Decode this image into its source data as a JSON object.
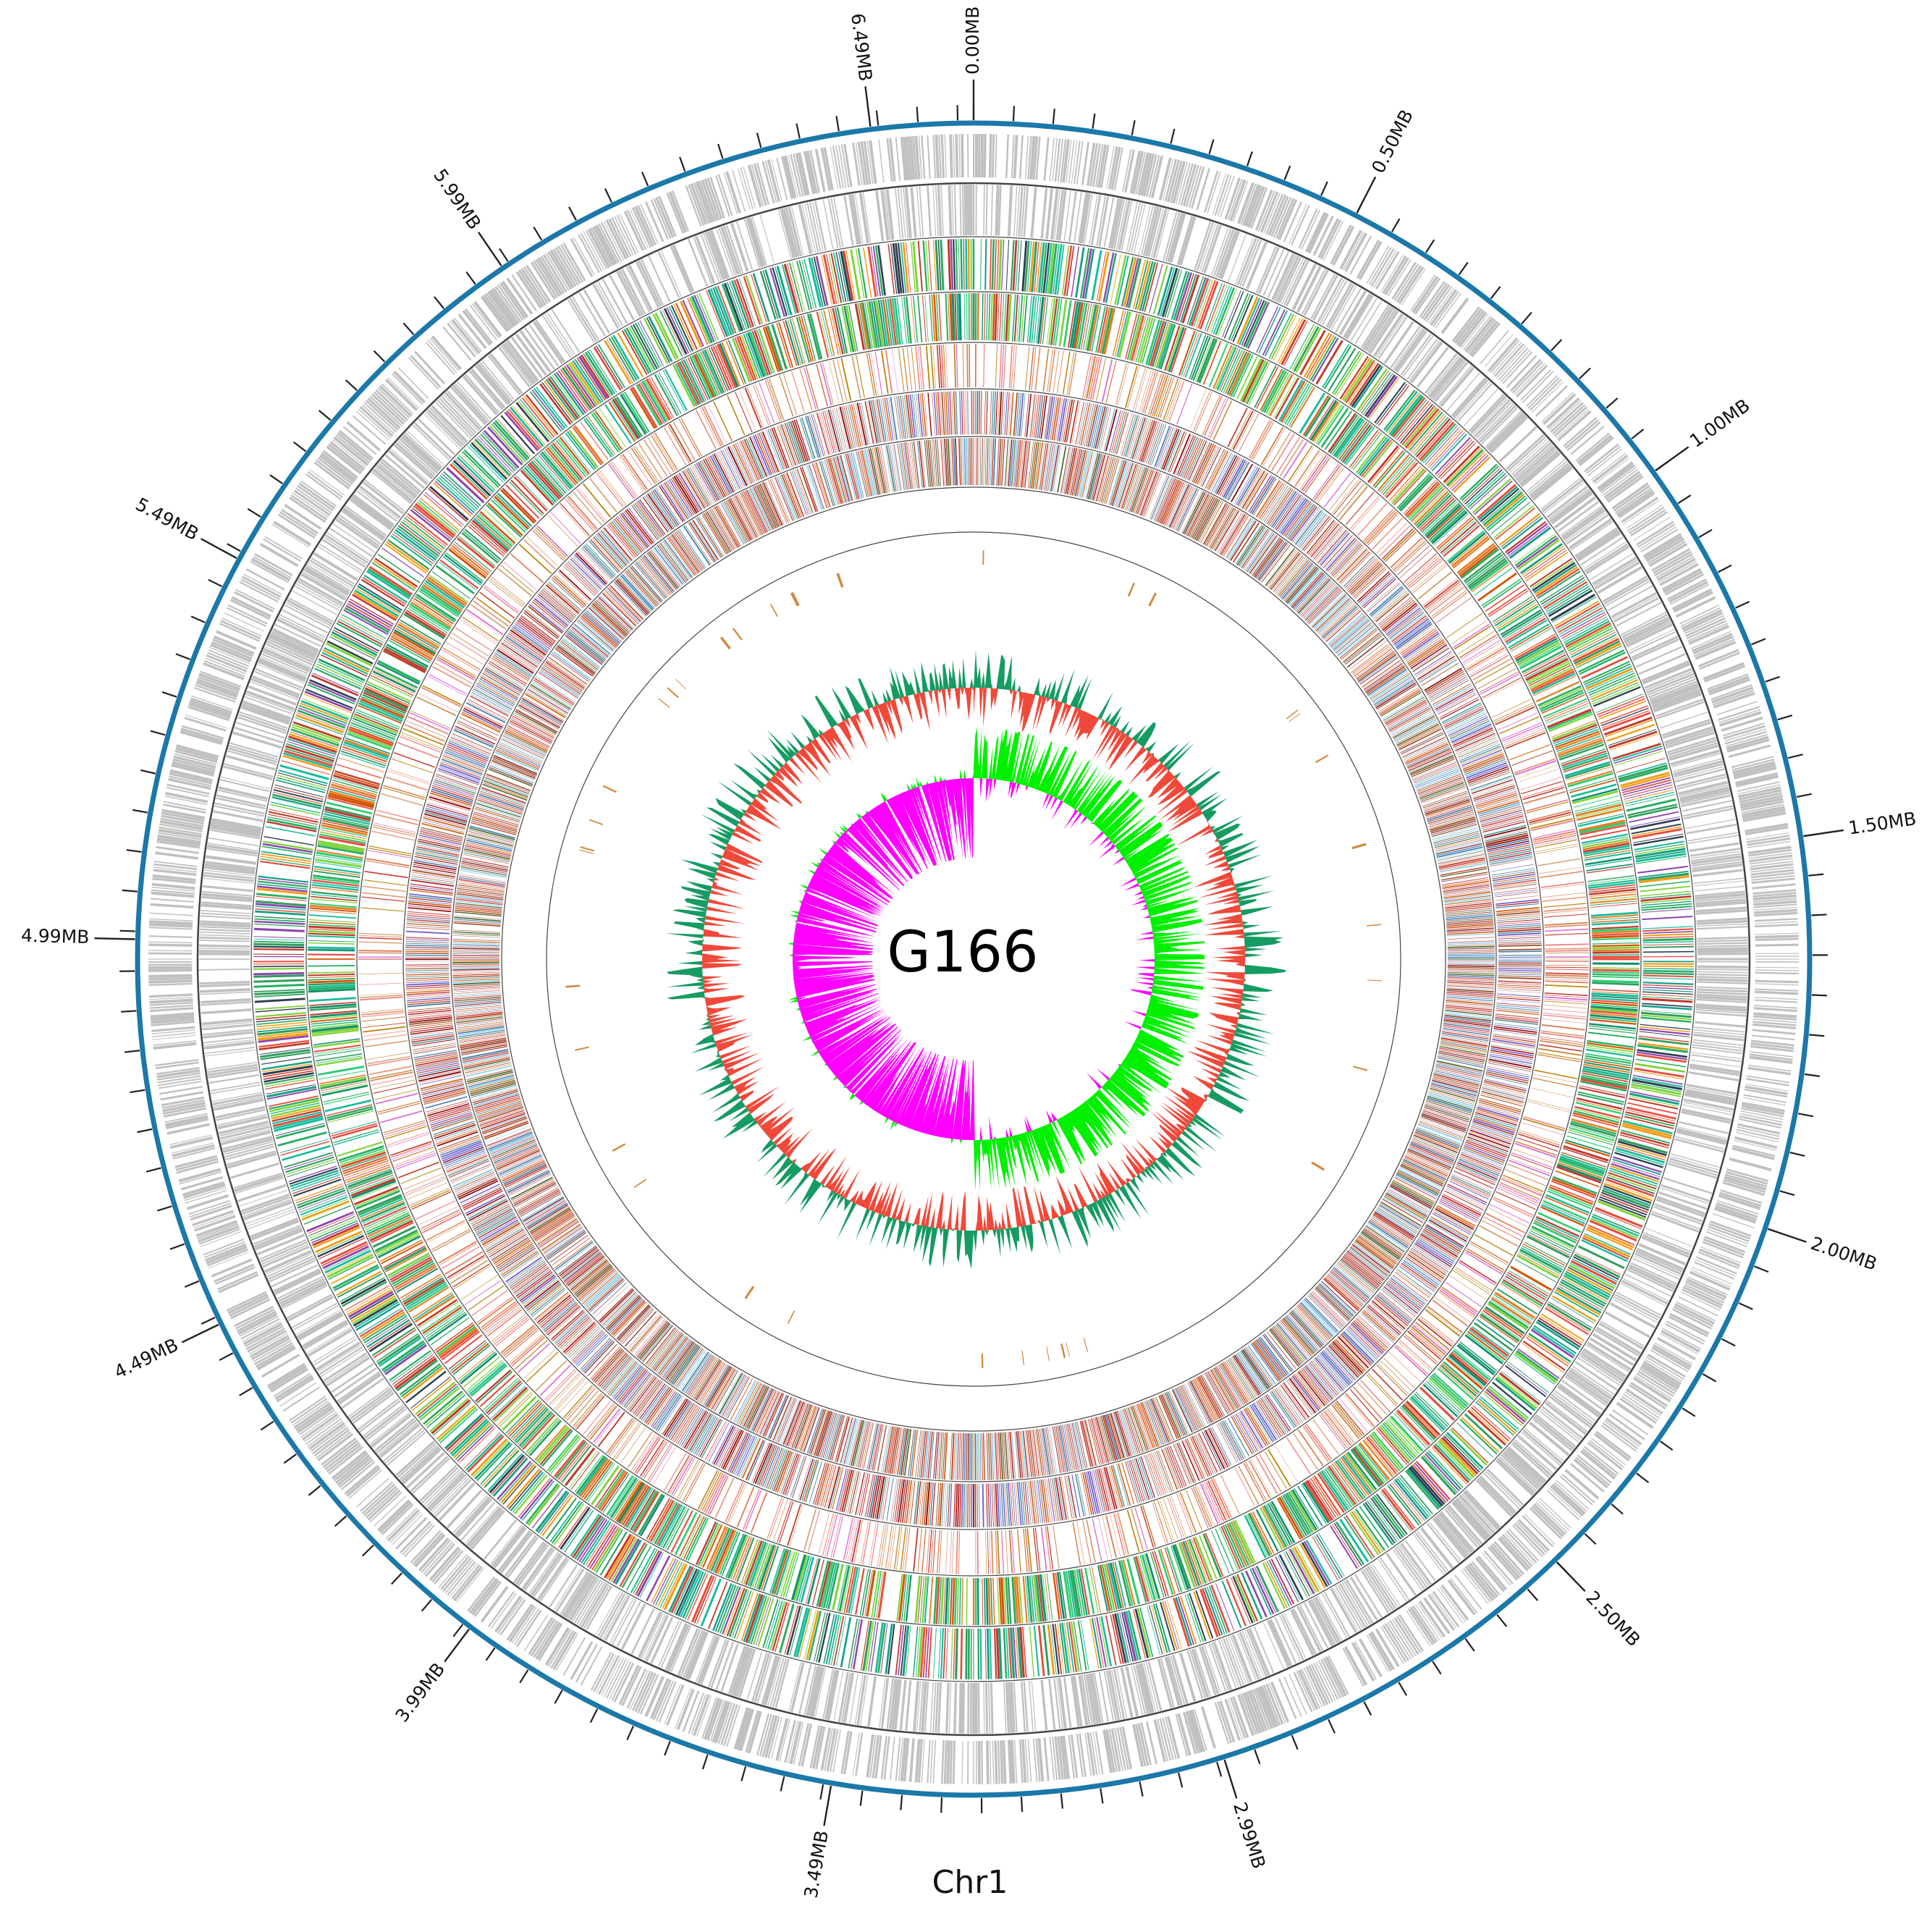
{
  "genome_label": "G166",
  "chromosome_label": "Chr1",
  "genome_length_mb": 6.62,
  "major_ticks": [
    {
      "label": "0.00MB",
      "position_mb": 0.0
    },
    {
      "label": "0.50MB",
      "position_mb": 0.5
    },
    {
      "label": "1.00MB",
      "position_mb": 1.0
    },
    {
      "label": "1.50MB",
      "position_mb": 1.5
    },
    {
      "label": "2.00MB",
      "position_mb": 2.0
    },
    {
      "label": "2.50MB",
      "position_mb": 2.5
    },
    {
      "label": "2.99MB",
      "position_mb": 2.99
    },
    {
      "label": "3.49MB",
      "position_mb": 3.49
    },
    {
      "label": "3.99MB",
      "position_mb": 3.99
    },
    {
      "label": "4.49MB",
      "position_mb": 4.49
    },
    {
      "label": "4.99MB",
      "position_mb": 4.99
    },
    {
      "label": "5.49MB",
      "position_mb": 5.49
    },
    {
      "label": "5.99MB",
      "position_mb": 5.99
    },
    {
      "label": "6.49MB",
      "position_mb": 6.49
    }
  ],
  "minor_ticks_per_major": 10,
  "tracks": [
    {
      "name": "forward-strand-genes",
      "color": "#c0c0c0"
    },
    {
      "name": "reverse-strand-genes",
      "color": "#c0c0c0"
    },
    {
      "name": "forward-cog-categories",
      "palette": [
        "#2e9e5b",
        "#1abc9c",
        "#27ae60",
        "#e74c3c",
        "#8e44ad",
        "#2c3e50",
        "#c0392b",
        "#f39c12",
        "#7fd33a",
        "#16a085"
      ]
    },
    {
      "name": "reverse-cog-categories",
      "palette": [
        "#2e9e5b",
        "#1abc9c",
        "#27ae60",
        "#e74c3c",
        "#d35400",
        "#2ecc71",
        "#c0392b",
        "#e67e22",
        "#7fd33a",
        "#0e8f6b"
      ]
    },
    {
      "name": "forward-go-annotation",
      "palette": [
        "#e07b53",
        "#c0392b",
        "#d4a373",
        "#f08080",
        "#b8860b",
        "#da70d6",
        "#cd853f",
        "#e9967a"
      ]
    },
    {
      "name": "reverse-go-annotation",
      "palette": [
        "#a0522d",
        "#8b0000",
        "#b22222",
        "#4682b4",
        "#cd5c5c",
        "#6a5acd",
        "#d2691e",
        "#5f9ea0",
        "#bc8f8f"
      ]
    },
    {
      "name": "forward-kegg-annotation",
      "palette": [
        "#a0522d",
        "#8b3a3a",
        "#c0392b",
        "#4682b4",
        "#cd5c5c",
        "#556b2f",
        "#d2691e",
        "#87ceeb",
        "#bc8f8f"
      ]
    },
    {
      "name": "ncrna",
      "color": "#d2883f"
    },
    {
      "name": "gc-content",
      "positive_color": "#169b62",
      "negative_color": "#f0493a"
    },
    {
      "name": "gc-skew",
      "positive_color": "#00f000",
      "negative_color": "#ff00ff"
    }
  ]
}
